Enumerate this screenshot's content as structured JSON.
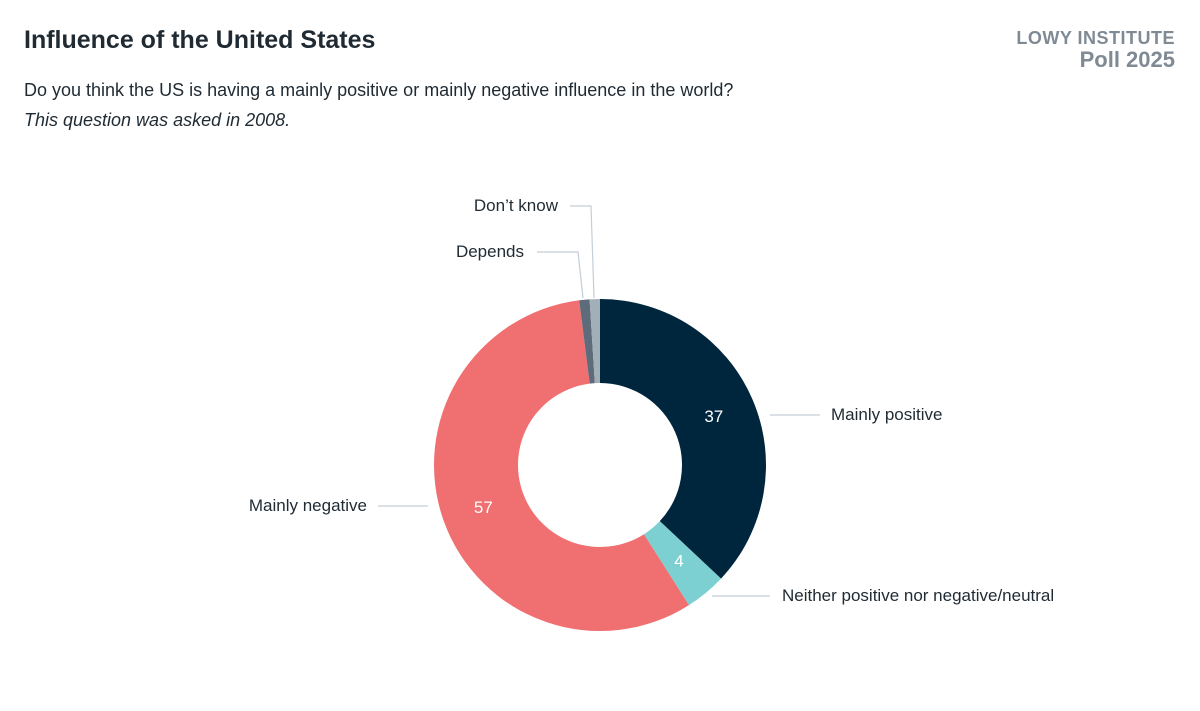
{
  "header": {
    "title": "Influence of the United States",
    "question": "Do you think the US is having a mainly positive or mainly negative influence in the world?",
    "note": "This question was asked in 2008.",
    "brand_line1": "LOWY INSTITUTE",
    "brand_line2": "Poll 2025"
  },
  "chart_data": {
    "type": "pie",
    "donut": true,
    "start": "12 o'clock, clockwise",
    "slices": [
      {
        "label": "Mainly positive",
        "value": 37,
        "color": "#00263e",
        "data_label": "37"
      },
      {
        "label": "Neither positive nor negative/neutral",
        "value": 4,
        "color": "#7dd0d1",
        "data_label": "4"
      },
      {
        "label": "Mainly negative",
        "value": 57,
        "color": "#f07072",
        "data_label": "57"
      },
      {
        "label": "Depends",
        "value": 1,
        "color": "#5d6b7a",
        "data_label": ""
      },
      {
        "label": "Don’t know",
        "value": 1,
        "color": "#a3afb7",
        "data_label": ""
      }
    ]
  }
}
